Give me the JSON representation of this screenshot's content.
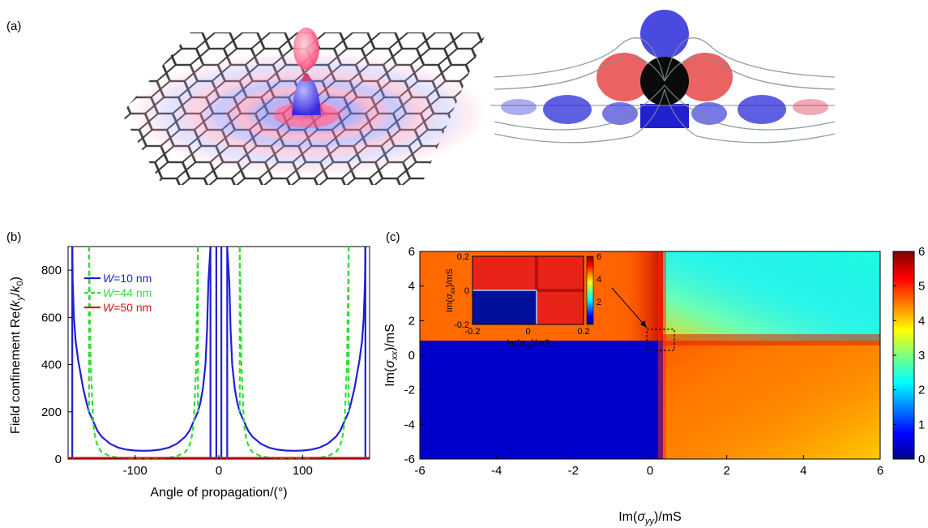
{
  "panels": {
    "a": "(a)",
    "b": "(b)",
    "c": "(c)"
  },
  "chart_data": [
    {
      "panel": "b",
      "type": "line",
      "xlabel": "Angle of propagation/(°)",
      "ylabel_prefix": "Field confinement Re(",
      "ylabel_k": "k",
      "ylabel_sub_y": "y",
      "ylabel_slash": "/",
      "ylabel_k0": "k",
      "ylabel_sub_0": "0",
      "ylabel_suffix": ")",
      "xlim": [
        -180,
        180
      ],
      "ylim": [
        0,
        900
      ],
      "xticks": [
        -100,
        0,
        100
      ],
      "yticks": [
        0,
        200,
        400,
        600,
        800
      ],
      "legend_position": "top-left",
      "series": [
        {
          "name": "W=10 nm",
          "name_var": "W",
          "name_rest": "=10 nm",
          "color": "#1f1fd6",
          "dash": "solid",
          "x": [
            -175,
            -174.5,
            -173,
            -171,
            -168,
            -165,
            -162,
            -158,
            -155,
            -150,
            -145,
            -140,
            -130,
            -120,
            -110,
            -100,
            -90,
            -80,
            -70,
            -60,
            -50,
            -40,
            -35,
            -30,
            -25,
            -22,
            -19,
            -16,
            -14,
            -12.5,
            -10
          ],
          "y": [
            900,
            750,
            600,
            500,
            420,
            360,
            300,
            240,
            200,
            160,
            120,
            95,
            65,
            48,
            40,
            36,
            35,
            36,
            40,
            48,
            65,
            95,
            120,
            160,
            200,
            240,
            300,
            400,
            550,
            750,
            900
          ],
          "spikes_x": [
            -175,
            -10,
            -3,
            3,
            10,
            175
          ]
        },
        {
          "name": "W=44 nm",
          "name_var": "W",
          "name_rest": "=44 nm",
          "color": "#33dd33",
          "dash": "dashed",
          "x": [
            -155,
            -153,
            -150,
            -147,
            -144,
            -140,
            -130,
            -120,
            -110,
            -100,
            -90,
            -80,
            -70,
            -60,
            -50,
            -40,
            -36,
            -33,
            -30,
            -27,
            -25
          ],
          "y": [
            900,
            400,
            150,
            80,
            50,
            30,
            12,
            6,
            4,
            3,
            3,
            3,
            4,
            6,
            12,
            30,
            50,
            80,
            150,
            400,
            900
          ]
        },
        {
          "name": "W=50 nm",
          "name_var": "W",
          "name_rest": "=50 nm",
          "color": "#dd1111",
          "dash": "solid",
          "x": [
            -180,
            180
          ],
          "y": [
            5,
            5
          ]
        }
      ]
    },
    {
      "panel": "c",
      "type": "heatmap",
      "xlabel_prefix": "Im(",
      "xlabel_sigma": "σ",
      "xlabel_sub": "yy",
      "xlabel_suffix": ")/mS",
      "ylabel_prefix": "Im(",
      "ylabel_sigma": "σ",
      "ylabel_sub": "xx",
      "ylabel_suffix": ")/mS",
      "xlim": [
        -6,
        6
      ],
      "ylim": [
        -6,
        6
      ],
      "xticks": [
        -6,
        -4,
        -2,
        0,
        2,
        4,
        6
      ],
      "yticks": [
        -6,
        -4,
        -2,
        0,
        2,
        4,
        6
      ],
      "colorbar": {
        "min": 0,
        "max": 6,
        "ticks": [
          0,
          1,
          2,
          3,
          4,
          5,
          6
        ]
      },
      "quadrant_values": {
        "lower_left": 0.4,
        "upper_left": 4.6,
        "upper_right": 2.4,
        "lower_right": 4.5
      },
      "inset": {
        "xlim": [
          -0.2,
          0.2
        ],
        "ylim": [
          -0.2,
          0.2
        ],
        "xticks": [
          -0.2,
          0,
          0.2
        ],
        "yticks": [
          -0.2,
          0,
          0.2
        ],
        "colorbar_ticks": [
          2,
          4,
          6
        ]
      }
    }
  ]
}
